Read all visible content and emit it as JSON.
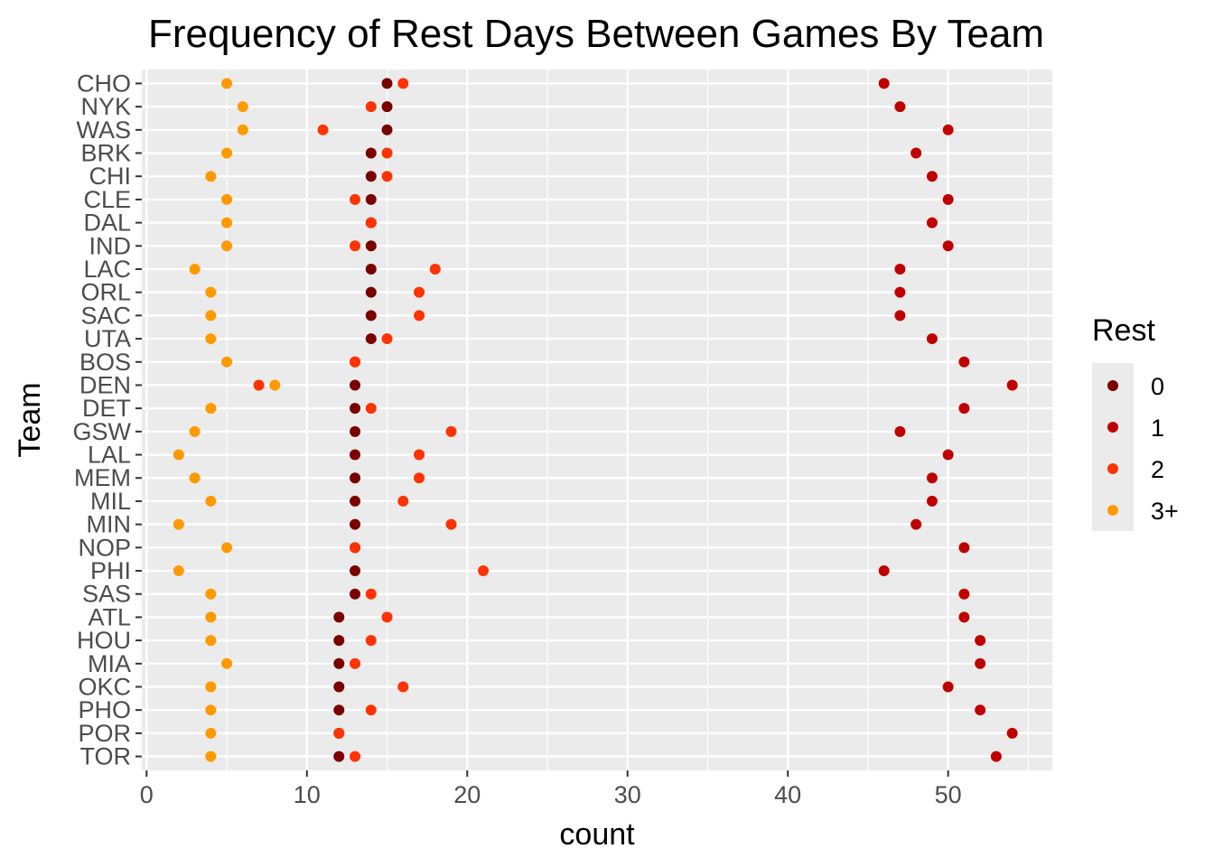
{
  "chart_data": {
    "type": "scatter",
    "title": "Frequency of Rest Days Between Games By Team",
    "xlabel": "count",
    "ylabel": "Team",
    "xlim": [
      -0.3,
      56.5
    ],
    "x_ticks": [
      0,
      10,
      20,
      30,
      40,
      50
    ],
    "grid": true,
    "legend": {
      "title": "Rest",
      "placement": "right"
    },
    "categories": [
      "CHO",
      "NYK",
      "WAS",
      "BRK",
      "CHI",
      "CLE",
      "DAL",
      "IND",
      "LAC",
      "ORL",
      "SAC",
      "UTA",
      "BOS",
      "DEN",
      "DET",
      "GSW",
      "LAL",
      "MEM",
      "MIL",
      "MIN",
      "NOP",
      "PHI",
      "SAS",
      "ATL",
      "HOU",
      "MIA",
      "OKC",
      "PHO",
      "POR",
      "TOR"
    ],
    "series": [
      {
        "name": "0",
        "color": "#7a0000",
        "values": [
          15,
          15,
          15,
          14,
          14,
          14,
          14,
          14,
          14,
          14,
          14,
          14,
          13,
          13,
          13,
          13,
          13,
          13,
          13,
          13,
          13,
          13,
          13,
          12,
          12,
          12,
          12,
          12,
          12,
          12
        ]
      },
      {
        "name": "1",
        "color": "#c00000",
        "values": [
          46,
          47,
          50,
          48,
          49,
          50,
          49,
          50,
          47,
          47,
          47,
          49,
          51,
          54,
          51,
          47,
          50,
          49,
          49,
          48,
          51,
          46,
          51,
          51,
          52,
          52,
          50,
          52,
          54,
          53
        ]
      },
      {
        "name": "2",
        "color": "#ff3300",
        "values": [
          16,
          14,
          11,
          15,
          15,
          13,
          14,
          13,
          18,
          17,
          17,
          15,
          13,
          7,
          14,
          19,
          17,
          17,
          16,
          19,
          13,
          21,
          14,
          15,
          14,
          13,
          16,
          14,
          12,
          13
        ]
      },
      {
        "name": "3+",
        "color": "#ff9900",
        "values": [
          5,
          6,
          6,
          5,
          4,
          5,
          5,
          5,
          3,
          4,
          4,
          4,
          5,
          8,
          4,
          3,
          2,
          3,
          4,
          2,
          5,
          2,
          4,
          4,
          4,
          5,
          4,
          4,
          4,
          4
        ]
      }
    ]
  }
}
